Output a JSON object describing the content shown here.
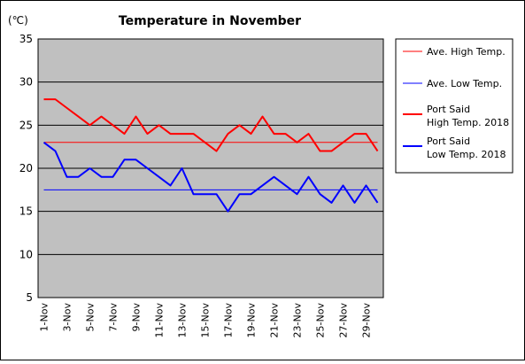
{
  "chart_data": {
    "type": "line",
    "title": "Temperature in November",
    "unit_label": "(℃)",
    "ylim": [
      5,
      35
    ],
    "yticks": [
      5,
      10,
      15,
      20,
      25,
      30,
      35
    ],
    "x": [
      "1-Nov",
      "2-Nov",
      "3-Nov",
      "4-Nov",
      "5-Nov",
      "6-Nov",
      "7-Nov",
      "8-Nov",
      "9-Nov",
      "10-Nov",
      "11-Nov",
      "12-Nov",
      "13-Nov",
      "14-Nov",
      "15-Nov",
      "16-Nov",
      "17-Nov",
      "18-Nov",
      "19-Nov",
      "20-Nov",
      "21-Nov",
      "22-Nov",
      "23-Nov",
      "24-Nov",
      "25-Nov",
      "26-Nov",
      "27-Nov",
      "28-Nov",
      "29-Nov",
      "30-Nov"
    ],
    "xtick_labels": [
      "1-Nov",
      "3-Nov",
      "5-Nov",
      "7-Nov",
      "9-Nov",
      "11-Nov",
      "13-Nov",
      "15-Nov",
      "17-Nov",
      "19-Nov",
      "21-Nov",
      "23-Nov",
      "25-Nov",
      "27-Nov",
      "29-Nov"
    ],
    "grid": true,
    "legend_position": "right",
    "series": [
      {
        "name": "Ave. High Temp.",
        "color": "#ff0000",
        "style": "thin",
        "values": [
          23,
          23,
          23,
          23,
          23,
          23,
          23,
          23,
          23,
          23,
          23,
          23,
          23,
          23,
          23,
          23,
          23,
          23,
          23,
          23,
          23,
          23,
          23,
          23,
          23,
          23,
          23,
          23,
          23,
          23
        ]
      },
      {
        "name": "Ave. Low Temp.",
        "color": "#0000ff",
        "style": "thin",
        "values": [
          17.5,
          17.5,
          17.5,
          17.5,
          17.5,
          17.5,
          17.5,
          17.5,
          17.5,
          17.5,
          17.5,
          17.5,
          17.5,
          17.5,
          17.5,
          17.5,
          17.5,
          17.5,
          17.5,
          17.5,
          17.5,
          17.5,
          17.5,
          17.5,
          17.5,
          17.5,
          17.5,
          17.5,
          17.5,
          17.5
        ]
      },
      {
        "name": "Port Said High Temp. 2018",
        "name_lines": [
          "Port Said",
          "High Temp. 2018"
        ],
        "color": "#ff0000",
        "style": "thick",
        "values": [
          28,
          28,
          27,
          26,
          25,
          26,
          25,
          24,
          26,
          24,
          25,
          24,
          24,
          24,
          23,
          22,
          24,
          25,
          24,
          26,
          24,
          24,
          23,
          24,
          22,
          22,
          23,
          24,
          24,
          22
        ]
      },
      {
        "name": "Port Said Low Temp. 2018",
        "name_lines": [
          "Port Said",
          "Low Temp. 2018"
        ],
        "color": "#0000ff",
        "style": "thick",
        "values": [
          23,
          22,
          19,
          19,
          20,
          19,
          19,
          21,
          21,
          20,
          19,
          18,
          20,
          17,
          17,
          17,
          15,
          17,
          17,
          18,
          19,
          18,
          17,
          19,
          17,
          16,
          18,
          16,
          18,
          16
        ]
      }
    ]
  }
}
